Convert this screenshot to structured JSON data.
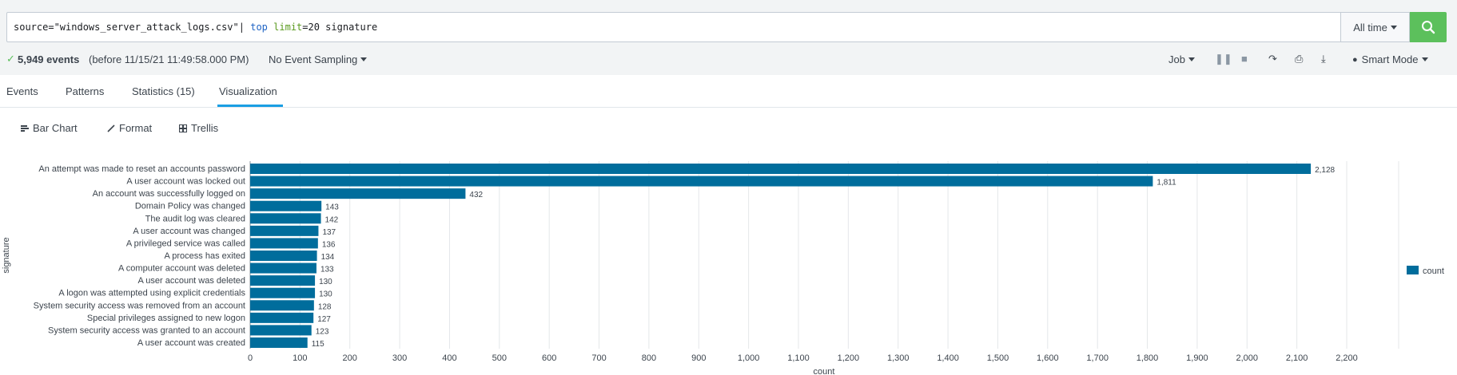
{
  "search": {
    "query_part1": "source=\"windows_server_attack_logs.csv\"| ",
    "query_top": "top",
    "query_space": " ",
    "query_limit": "limit",
    "query_rest": "=20 signature",
    "time_range": "All time",
    "search_icon": "search-icon"
  },
  "status": {
    "check_icon": "✓",
    "event_count": "5,949 events",
    "event_before": "(before 11/15/21 11:49:58.000 PM)",
    "sampling": "No Event Sampling",
    "job": "Job",
    "mode": "Smart Mode"
  },
  "tabs": [
    {
      "label": "Events"
    },
    {
      "label": "Patterns"
    },
    {
      "label": "Statistics (15)"
    },
    {
      "label": "Visualization"
    }
  ],
  "viz_toolbar": {
    "chart_type": "Bar Chart",
    "format": "Format",
    "trellis": "Trellis"
  },
  "colors": {
    "bar": "#006d9c",
    "accent": "#1a9ee3",
    "search_button": "#5cc05c"
  },
  "chart_data": {
    "type": "bar",
    "orientation": "horizontal",
    "categories": [
      "An attempt was made to reset an accounts password",
      "A user account was locked out",
      "An account was successfully logged on",
      "Domain Policy was changed",
      "The audit log was cleared",
      "A user account was changed",
      "A privileged service was called",
      "A process has exited",
      "A computer account was deleted",
      "A user account was deleted",
      "A logon was attempted using explicit credentials",
      "System security access was removed from an account",
      "Special privileges assigned to new logon",
      "System security access was granted to an account",
      "A user account was created"
    ],
    "series": [
      {
        "name": "count",
        "values": [
          2128,
          1811,
          432,
          143,
          142,
          137,
          136,
          134,
          133,
          130,
          130,
          128,
          127,
          123,
          115
        ]
      }
    ],
    "value_labels": [
      "2,128",
      "1,811",
      "432",
      "143",
      "142",
      "137",
      "136",
      "134",
      "133",
      "130",
      "130",
      "128",
      "127",
      "123",
      "115"
    ],
    "xlabel": "count",
    "ylabel": "signature",
    "xlim": [
      0,
      2200
    ],
    "xticks": [
      "0",
      "100",
      "200",
      "300",
      "400",
      "500",
      "600",
      "700",
      "800",
      "900",
      "1,000",
      "1,100",
      "1,200",
      "1,300",
      "1,400",
      "1,500",
      "1,600",
      "1,700",
      "1,800",
      "1,900",
      "2,000",
      "2,100",
      "2,200"
    ],
    "grid": true,
    "legend": "right"
  }
}
